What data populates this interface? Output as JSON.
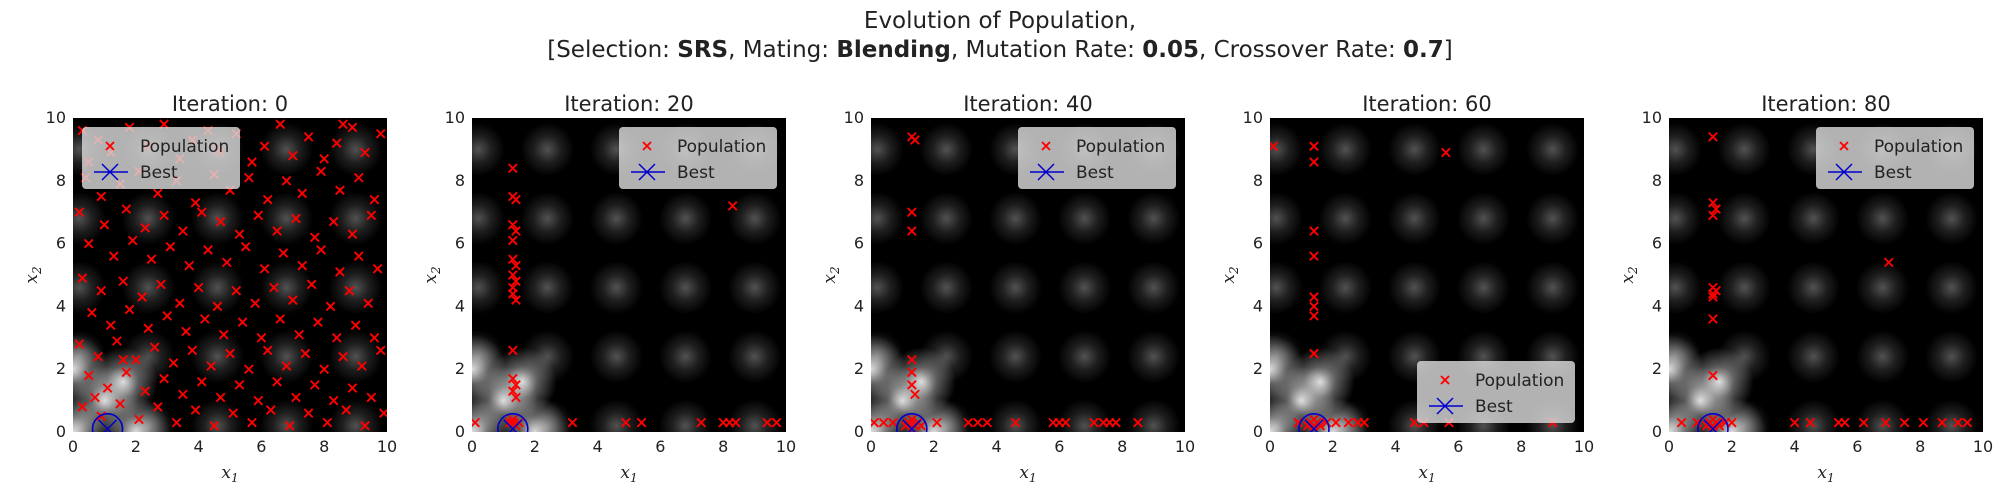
{
  "figure": {
    "title_line1": "Evolution of Population,",
    "title_line2": {
      "selection_label": "[Selection: ",
      "selection_value": "SRS",
      "mating_label": ", Mating: ",
      "mating_value": "Blending",
      "mutation_label": ", Mutation Rate: ",
      "mutation_value": "0.05",
      "crossover_label": ", Crossover Rate: ",
      "crossover_value": "0.7",
      "closing": "]"
    }
  },
  "colors": {
    "population": "#ff0000",
    "best": "#0000cc",
    "legend_bg": "#d9d9d9"
  },
  "chart_data": [
    {
      "type": "scatter",
      "title": "Iteration: 0",
      "xlabel": "x",
      "xlabel_sub": "1",
      "ylabel": "x",
      "ylabel_sub": "2",
      "xlim": [
        0,
        10
      ],
      "ylim": [
        0,
        10
      ],
      "xticks": [
        "0",
        "2",
        "4",
        "6",
        "8",
        "10"
      ],
      "yticks": [
        "0",
        "2",
        "4",
        "6",
        "8",
        "10"
      ],
      "grid": false,
      "legend_position": "top-left",
      "legend": [
        "Population",
        "Best"
      ],
      "best": [
        1.1,
        0.1
      ],
      "population": [
        [
          0.3,
          9.6
        ],
        [
          0.8,
          9.3
        ],
        [
          1.2,
          8.9
        ],
        [
          0.5,
          8.6
        ],
        [
          1.8,
          9.7
        ],
        [
          2.4,
          9.1
        ],
        [
          2.9,
          9.8
        ],
        [
          3.4,
          8.7
        ],
        [
          3.8,
          9.3
        ],
        [
          4.3,
          9.6
        ],
        [
          4.7,
          8.9
        ],
        [
          5.2,
          9.5
        ],
        [
          5.7,
          8.6
        ],
        [
          6.1,
          9.1
        ],
        [
          6.6,
          9.8
        ],
        [
          7.0,
          8.8
        ],
        [
          7.5,
          9.4
        ],
        [
          8.0,
          8.7
        ],
        [
          8.4,
          9.2
        ],
        [
          8.9,
          9.7
        ],
        [
          9.3,
          8.9
        ],
        [
          9.8,
          9.5
        ],
        [
          0.4,
          8.1
        ],
        [
          0.9,
          7.5
        ],
        [
          1.5,
          7.9
        ],
        [
          2.1,
          8.3
        ],
        [
          2.7,
          7.6
        ],
        [
          3.3,
          8.0
        ],
        [
          3.9,
          7.3
        ],
        [
          4.5,
          8.2
        ],
        [
          5.0,
          7.7
        ],
        [
          5.6,
          8.1
        ],
        [
          6.2,
          7.4
        ],
        [
          6.8,
          8.0
        ],
        [
          7.3,
          7.6
        ],
        [
          7.9,
          8.3
        ],
        [
          8.5,
          7.7
        ],
        [
          9.1,
          8.1
        ],
        [
          9.6,
          7.4
        ],
        [
          0.2,
          7.0
        ],
        [
          1.0,
          6.6
        ],
        [
          1.7,
          7.1
        ],
        [
          2.3,
          6.5
        ],
        [
          2.9,
          6.9
        ],
        [
          3.5,
          6.4
        ],
        [
          4.1,
          7.0
        ],
        [
          4.7,
          6.7
        ],
        [
          5.3,
          6.3
        ],
        [
          5.9,
          6.9
        ],
        [
          6.5,
          6.4
        ],
        [
          7.1,
          6.8
        ],
        [
          7.7,
          6.2
        ],
        [
          8.3,
          6.7
        ],
        [
          8.9,
          6.3
        ],
        [
          9.5,
          6.9
        ],
        [
          0.5,
          6.0
        ],
        [
          1.3,
          5.6
        ],
        [
          1.9,
          6.1
        ],
        [
          2.5,
          5.5
        ],
        [
          3.1,
          5.9
        ],
        [
          3.7,
          5.3
        ],
        [
          4.3,
          5.8
        ],
        [
          4.9,
          5.4
        ],
        [
          5.5,
          5.9
        ],
        [
          6.1,
          5.2
        ],
        [
          6.7,
          5.7
        ],
        [
          7.3,
          5.3
        ],
        [
          7.9,
          5.8
        ],
        [
          8.5,
          5.1
        ],
        [
          9.1,
          5.6
        ],
        [
          9.7,
          5.2
        ],
        [
          0.3,
          4.9
        ],
        [
          0.9,
          4.5
        ],
        [
          1.6,
          4.8
        ],
        [
          2.2,
          4.3
        ],
        [
          2.8,
          4.7
        ],
        [
          3.4,
          4.1
        ],
        [
          4.0,
          4.6
        ],
        [
          4.6,
          4.0
        ],
        [
          5.2,
          4.5
        ],
        [
          5.8,
          4.1
        ],
        [
          6.4,
          4.6
        ],
        [
          7.0,
          4.2
        ],
        [
          7.6,
          4.7
        ],
        [
          8.2,
          4.0
        ],
        [
          8.8,
          4.5
        ],
        [
          9.4,
          4.1
        ],
        [
          0.6,
          3.8
        ],
        [
          1.2,
          3.4
        ],
        [
          1.8,
          3.9
        ],
        [
          2.4,
          3.3
        ],
        [
          3.0,
          3.7
        ],
        [
          3.6,
          3.2
        ],
        [
          4.2,
          3.6
        ],
        [
          4.8,
          3.1
        ],
        [
          5.4,
          3.5
        ],
        [
          6.0,
          3.0
        ],
        [
          6.6,
          3.6
        ],
        [
          7.2,
          3.1
        ],
        [
          7.8,
          3.5
        ],
        [
          8.4,
          3.0
        ],
        [
          9.0,
          3.4
        ],
        [
          9.6,
          3.0
        ],
        [
          0.2,
          2.8
        ],
        [
          0.8,
          2.4
        ],
        [
          1.4,
          2.9
        ],
        [
          2.0,
          2.3
        ],
        [
          2.6,
          2.7
        ],
        [
          3.2,
          2.2
        ],
        [
          3.8,
          2.6
        ],
        [
          4.4,
          2.1
        ],
        [
          5.0,
          2.5
        ],
        [
          5.6,
          2.0
        ],
        [
          6.2,
          2.6
        ],
        [
          6.8,
          2.1
        ],
        [
          7.4,
          2.5
        ],
        [
          8.0,
          2.0
        ],
        [
          8.6,
          2.4
        ],
        [
          9.2,
          2.1
        ],
        [
          9.8,
          2.6
        ],
        [
          0.5,
          1.8
        ],
        [
          1.1,
          1.4
        ],
        [
          1.7,
          1.9
        ],
        [
          2.3,
          1.3
        ],
        [
          2.9,
          1.7
        ],
        [
          3.5,
          1.2
        ],
        [
          4.1,
          1.6
        ],
        [
          4.7,
          1.1
        ],
        [
          5.3,
          1.5
        ],
        [
          5.9,
          1.0
        ],
        [
          6.5,
          1.6
        ],
        [
          7.1,
          1.1
        ],
        [
          7.7,
          1.5
        ],
        [
          8.3,
          1.0
        ],
        [
          8.9,
          1.4
        ],
        [
          9.5,
          1.1
        ],
        [
          0.3,
          0.8
        ],
        [
          0.9,
          0.5
        ],
        [
          1.5,
          0.9
        ],
        [
          2.1,
          0.4
        ],
        [
          2.7,
          0.8
        ],
        [
          3.3,
          0.3
        ],
        [
          3.9,
          0.7
        ],
        [
          4.5,
          0.2
        ],
        [
          5.1,
          0.6
        ],
        [
          5.7,
          0.3
        ],
        [
          6.3,
          0.7
        ],
        [
          6.9,
          0.2
        ],
        [
          7.5,
          0.6
        ],
        [
          8.1,
          0.3
        ],
        [
          8.7,
          0.7
        ],
        [
          9.3,
          0.2
        ],
        [
          9.9,
          0.6
        ],
        [
          1.6,
          2.3
        ],
        [
          0.7,
          1.1
        ],
        [
          4.6,
          9.0
        ],
        [
          8.6,
          9.8
        ]
      ]
    },
    {
      "type": "scatter",
      "title": "Iteration: 20",
      "xlabel": "x",
      "xlabel_sub": "1",
      "ylabel": "x",
      "ylabel_sub": "2",
      "xlim": [
        0,
        10
      ],
      "ylim": [
        0,
        10
      ],
      "xticks": [
        "0",
        "2",
        "4",
        "6",
        "8",
        "10"
      ],
      "yticks": [
        "0",
        "2",
        "4",
        "6",
        "8",
        "10"
      ],
      "grid": false,
      "legend_position": "top-right",
      "legend": [
        "Population",
        "Best"
      ],
      "best": [
        1.3,
        0.1
      ],
      "population": [
        [
          1.3,
          8.4
        ],
        [
          1.3,
          7.5
        ],
        [
          1.4,
          7.4
        ],
        [
          1.3,
          6.6
        ],
        [
          1.4,
          6.4
        ],
        [
          1.3,
          6.1
        ],
        [
          1.3,
          5.5
        ],
        [
          1.4,
          5.3
        ],
        [
          1.3,
          5.0
        ],
        [
          1.4,
          4.8
        ],
        [
          1.3,
          4.6
        ],
        [
          1.3,
          4.4
        ],
        [
          1.4,
          4.2
        ],
        [
          1.3,
          2.6
        ],
        [
          1.3,
          1.7
        ],
        [
          1.4,
          1.5
        ],
        [
          1.3,
          1.3
        ],
        [
          1.4,
          1.1
        ],
        [
          1.3,
          0.3
        ],
        [
          1.4,
          0.2
        ],
        [
          1.2,
          0.3
        ],
        [
          1.5,
          0.3
        ],
        [
          1.3,
          0.4
        ],
        [
          0.1,
          0.3
        ],
        [
          3.2,
          0.3
        ],
        [
          4.9,
          0.3
        ],
        [
          5.4,
          0.3
        ],
        [
          7.3,
          0.3
        ],
        [
          8.0,
          0.3
        ],
        [
          8.2,
          0.3
        ],
        [
          8.4,
          0.3
        ],
        [
          9.4,
          0.3
        ],
        [
          9.7,
          0.3
        ],
        [
          8.3,
          7.2
        ]
      ]
    },
    {
      "type": "scatter",
      "title": "Iteration: 40",
      "xlabel": "x",
      "xlabel_sub": "1",
      "ylabel": "x",
      "ylabel_sub": "2",
      "xlim": [
        0,
        10
      ],
      "ylim": [
        0,
        10
      ],
      "xticks": [
        "0",
        "2",
        "4",
        "6",
        "8",
        "10"
      ],
      "yticks": [
        "0",
        "2",
        "4",
        "6",
        "8",
        "10"
      ],
      "grid": false,
      "legend_position": "top-right",
      "legend": [
        "Population",
        "Best"
      ],
      "best": [
        1.3,
        0.1
      ],
      "population": [
        [
          1.3,
          9.4
        ],
        [
          1.4,
          9.3
        ],
        [
          1.3,
          7.0
        ],
        [
          1.3,
          6.4
        ],
        [
          1.3,
          2.3
        ],
        [
          1.3,
          1.9
        ],
        [
          1.3,
          1.5
        ],
        [
          1.4,
          1.2
        ],
        [
          1.3,
          0.4
        ],
        [
          1.2,
          0.3
        ],
        [
          1.4,
          0.2
        ],
        [
          1.5,
          0.3
        ],
        [
          1.3,
          0.1
        ],
        [
          1.1,
          0.2
        ],
        [
          1.6,
          0.2
        ],
        [
          0.1,
          0.3
        ],
        [
          0.4,
          0.3
        ],
        [
          0.7,
          0.3
        ],
        [
          2.1,
          0.3
        ],
        [
          3.1,
          0.3
        ],
        [
          3.4,
          0.3
        ],
        [
          3.7,
          0.3
        ],
        [
          4.6,
          0.3
        ],
        [
          5.8,
          0.3
        ],
        [
          6.0,
          0.3
        ],
        [
          6.2,
          0.3
        ],
        [
          7.1,
          0.3
        ],
        [
          7.4,
          0.3
        ],
        [
          7.6,
          0.3
        ],
        [
          7.8,
          0.3
        ],
        [
          8.5,
          0.3
        ]
      ]
    },
    {
      "type": "scatter",
      "title": "Iteration: 60",
      "xlabel": "x",
      "xlabel_sub": "1",
      "ylabel": "x",
      "ylabel_sub": "2",
      "xlim": [
        0,
        10
      ],
      "ylim": [
        0,
        10
      ],
      "xticks": [
        "0",
        "2",
        "4",
        "6",
        "8",
        "10"
      ],
      "yticks": [
        "0",
        "2",
        "4",
        "6",
        "8",
        "10"
      ],
      "grid": false,
      "legend_position": "lower-right",
      "legend": [
        "Population",
        "Best"
      ],
      "best": [
        1.4,
        0.1
      ],
      "population": [
        [
          0.1,
          9.1
        ],
        [
          1.4,
          9.1
        ],
        [
          1.4,
          8.6
        ],
        [
          5.6,
          8.9
        ],
        [
          1.4,
          6.4
        ],
        [
          1.4,
          5.6
        ],
        [
          1.4,
          4.3
        ],
        [
          1.4,
          4.0
        ],
        [
          1.4,
          3.7
        ],
        [
          1.4,
          2.5
        ],
        [
          1.4,
          0.4
        ],
        [
          1.3,
          0.3
        ],
        [
          1.5,
          0.3
        ],
        [
          1.4,
          0.2
        ],
        [
          1.2,
          0.2
        ],
        [
          1.6,
          0.2
        ],
        [
          1.8,
          0.3
        ],
        [
          0.9,
          0.3
        ],
        [
          2.1,
          0.3
        ],
        [
          2.5,
          0.3
        ],
        [
          2.8,
          0.3
        ],
        [
          3.0,
          0.3
        ],
        [
          4.6,
          0.3
        ],
        [
          4.9,
          0.3
        ],
        [
          5.7,
          0.3
        ],
        [
          9.0,
          0.3
        ]
      ]
    },
    {
      "type": "scatter",
      "title": "Iteration: 80",
      "xlabel": "x",
      "xlabel_sub": "1",
      "ylabel": "x",
      "ylabel_sub": "2",
      "xlim": [
        0,
        10
      ],
      "ylim": [
        0,
        10
      ],
      "xticks": [
        "0",
        "2",
        "4",
        "6",
        "8",
        "10"
      ],
      "yticks": [
        "0",
        "2",
        "4",
        "6",
        "8",
        "10"
      ],
      "grid": false,
      "legend_position": "top-right",
      "legend": [
        "Population",
        "Best"
      ],
      "best": [
        1.4,
        0.1
      ],
      "population": [
        [
          1.4,
          9.4
        ],
        [
          1.4,
          7.3
        ],
        [
          1.5,
          7.1
        ],
        [
          1.4,
          6.9
        ],
        [
          7.0,
          5.4
        ],
        [
          1.4,
          4.6
        ],
        [
          1.5,
          4.5
        ],
        [
          1.4,
          4.4
        ],
        [
          1.4,
          4.3
        ],
        [
          1.4,
          3.6
        ],
        [
          1.4,
          1.8
        ],
        [
          1.4,
          0.4
        ],
        [
          1.3,
          0.3
        ],
        [
          1.5,
          0.3
        ],
        [
          1.4,
          0.2
        ],
        [
          1.2,
          0.2
        ],
        [
          1.6,
          0.2
        ],
        [
          0.4,
          0.3
        ],
        [
          0.9,
          0.3
        ],
        [
          1.8,
          0.3
        ],
        [
          2.0,
          0.3
        ],
        [
          4.0,
          0.3
        ],
        [
          4.5,
          0.3
        ],
        [
          5.4,
          0.3
        ],
        [
          5.6,
          0.3
        ],
        [
          6.2,
          0.3
        ],
        [
          6.9,
          0.3
        ],
        [
          7.5,
          0.3
        ],
        [
          8.1,
          0.3
        ],
        [
          8.7,
          0.3
        ],
        [
          9.2,
          0.3
        ],
        [
          9.5,
          0.3
        ]
      ]
    }
  ]
}
